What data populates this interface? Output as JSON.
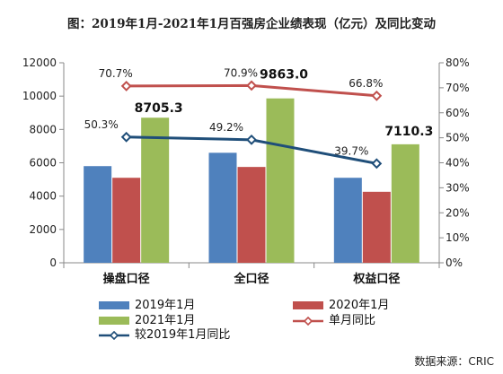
{
  "title": "图：2019年1月-2021年1月百强房企业绩表现（亿元）及同比变动",
  "source": "数据来源：CRIC",
  "colors": {
    "s2019": "#4f81bd",
    "s2020": "#c0504d",
    "s2021": "#9bbb59",
    "monthly_line": "#c0504d",
    "vs2019_line": "#1f4e79"
  },
  "chart_data": {
    "type": "bar",
    "categories": [
      "操盘口径",
      "全口径",
      "权益口径"
    ],
    "ylim": [
      0,
      12000
    ],
    "y_ticks": [
      "0",
      "2000",
      "4000",
      "6000",
      "8000",
      "10000",
      "12000"
    ],
    "y2lim": [
      0,
      80
    ],
    "y2_ticks": [
      "0%",
      "10%",
      "20%",
      "30%",
      "40%",
      "50%",
      "60%",
      "70%",
      "80%"
    ],
    "series": [
      {
        "name": "2019年1月",
        "values": [
          5800,
          6600,
          5100
        ]
      },
      {
        "name": "2020年1月",
        "values": [
          5100,
          5750,
          4260
        ]
      },
      {
        "name": "2021年1月",
        "values": [
          8705.3,
          9863.0,
          7110.3
        ]
      }
    ],
    "bar_labels": [
      "8705.3",
      "9863.0",
      "7110.3"
    ],
    "lines": [
      {
        "name": "单月同比",
        "values": [
          70.7,
          70.9,
          66.8
        ],
        "labels": [
          "70.7%",
          "70.9%",
          "66.8%"
        ]
      },
      {
        "name": "较2019年1月同比",
        "values": [
          50.3,
          49.2,
          39.7
        ],
        "labels": [
          "50.3%",
          "49.2%",
          "39.7%"
        ]
      }
    ],
    "legend": [
      "2019年1月",
      "2020年1月",
      "2021年1月",
      "单月同比",
      "较2019年1月同比"
    ],
    "legend_position": "bottom",
    "grid": false
  }
}
